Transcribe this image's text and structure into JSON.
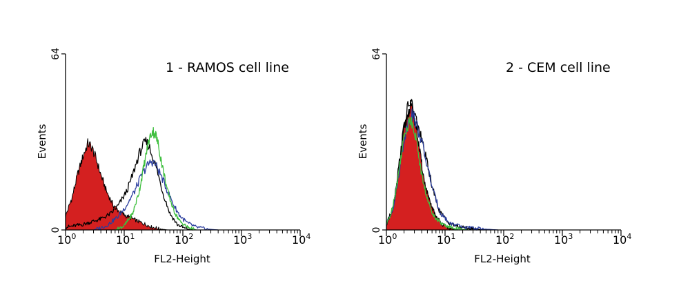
{
  "chart_data": [
    {
      "type": "histogram",
      "title": "1 - RAMOS cell line",
      "xlabel": "FL2-Height",
      "ylabel": "Events",
      "xscale": "log",
      "xlim": [
        1,
        10000
      ],
      "ylim": [
        0,
        64
      ],
      "y_ticks": [
        {
          "value": 0,
          "label": "0"
        },
        {
          "value": 64,
          "label": "64"
        }
      ],
      "x_ticks": [
        {
          "value": 1,
          "base": "10",
          "exp": "0"
        },
        {
          "value": 10,
          "base": "10",
          "exp": "1"
        },
        {
          "value": 100,
          "base": "10",
          "exp": "2"
        },
        {
          "value": 1000,
          "base": "10",
          "exp": "3"
        },
        {
          "value": 10000,
          "base": "10",
          "exp": "4"
        }
      ],
      "series": [
        {
          "name": "red filled",
          "color": "#d42020",
          "filled": true,
          "points": [
            [
              1.0,
              5
            ],
            [
              1.3,
              12
            ],
            [
              1.6,
              20
            ],
            [
              2.0,
              27
            ],
            [
              2.4,
              31.5
            ],
            [
              2.8,
              30
            ],
            [
              3.3,
              26
            ],
            [
              4.0,
              20
            ],
            [
              5.0,
              14
            ],
            [
              6.5,
              9
            ],
            [
              8.5,
              6.5
            ],
            [
              11,
              5
            ],
            [
              14,
              4
            ],
            [
              18,
              3
            ],
            [
              23,
              2
            ],
            [
              30,
              1
            ],
            [
              40,
              0.4
            ],
            [
              55,
              0
            ]
          ]
        },
        {
          "name": "black",
          "color": "#000000",
          "filled": false,
          "points": [
            [
              1.0,
              1
            ],
            [
              2.0,
              2
            ],
            [
              4.0,
              4
            ],
            [
              6.0,
              6
            ],
            [
              8.0,
              9
            ],
            [
              11,
              14
            ],
            [
              14,
              20
            ],
            [
              17,
              26
            ],
            [
              20,
              30
            ],
            [
              23,
              32
            ],
            [
              26,
              31
            ],
            [
              30,
              27
            ],
            [
              36,
              22
            ],
            [
              45,
              14
            ],
            [
              60,
              6
            ],
            [
              80,
              2
            ],
            [
              110,
              0.5
            ],
            [
              150,
              0
            ]
          ]
        },
        {
          "name": "blue",
          "color": "#2a3d9e",
          "filled": false,
          "points": [
            [
              3.0,
              0
            ],
            [
              5.0,
              1.5
            ],
            [
              8.0,
              5
            ],
            [
              11,
              9
            ],
            [
              15,
              14
            ],
            [
              19,
              19
            ],
            [
              24,
              23
            ],
            [
              29,
              25
            ],
            [
              34,
              24
            ],
            [
              42,
              20
            ],
            [
              55,
              14
            ],
            [
              70,
              9
            ],
            [
              90,
              5
            ],
            [
              120,
              2.5
            ],
            [
              170,
              1
            ],
            [
              260,
              0.3
            ],
            [
              400,
              0
            ]
          ]
        },
        {
          "name": "green",
          "color": "#3fbf3f",
          "filled": false,
          "points": [
            [
              7.0,
              0
            ],
            [
              10,
              1.5
            ],
            [
              14,
              6
            ],
            [
              18,
              14
            ],
            [
              22,
              24
            ],
            [
              26,
              32
            ],
            [
              30,
              36
            ],
            [
              34,
              35
            ],
            [
              38,
              31
            ],
            [
              45,
              23
            ],
            [
              55,
              14
            ],
            [
              70,
              7
            ],
            [
              90,
              3
            ],
            [
              120,
              1
            ],
            [
              170,
              0
            ]
          ]
        }
      ]
    },
    {
      "type": "histogram",
      "title": "2 - CEM cell line",
      "xlabel": "FL2-Height",
      "ylabel": "Events",
      "xscale": "log",
      "xlim": [
        1,
        10000
      ],
      "ylim": [
        0,
        64
      ],
      "y_ticks": [
        {
          "value": 0,
          "label": "0"
        },
        {
          "value": 64,
          "label": "64"
        }
      ],
      "x_ticks": [
        {
          "value": 1,
          "base": "10",
          "exp": "0"
        },
        {
          "value": 10,
          "base": "10",
          "exp": "1"
        },
        {
          "value": 100,
          "base": "10",
          "exp": "2"
        },
        {
          "value": 1000,
          "base": "10",
          "exp": "3"
        },
        {
          "value": 10000,
          "base": "10",
          "exp": "4"
        }
      ],
      "series": [
        {
          "name": "red filled",
          "color": "#d42020",
          "filled": true,
          "points": [
            [
              1.0,
              2
            ],
            [
              1.3,
              8
            ],
            [
              1.6,
              20
            ],
            [
              2.0,
              36
            ],
            [
              2.3,
              42
            ],
            [
              2.6,
              45
            ],
            [
              2.9,
              42
            ],
            [
              3.3,
              36
            ],
            [
              3.8,
              27
            ],
            [
              4.5,
              17
            ],
            [
              5.5,
              10
            ],
            [
              7.0,
              5
            ],
            [
              9.0,
              2
            ],
            [
              12,
              0.6
            ],
            [
              15,
              0
            ]
          ]
        },
        {
          "name": "black",
          "color": "#000000",
          "filled": false,
          "points": [
            [
              1.0,
              2
            ],
            [
              1.3,
              8
            ],
            [
              1.6,
              22
            ],
            [
              2.0,
              38
            ],
            [
              2.3,
              44
            ],
            [
              2.6,
              47
            ],
            [
              3.0,
              42
            ],
            [
              3.5,
              37
            ],
            [
              4.2,
              31
            ],
            [
              5.2,
              22
            ],
            [
              6.5,
              13
            ],
            [
              8.0,
              7
            ],
            [
              11,
              3
            ],
            [
              16,
              1.2
            ],
            [
              30,
              0.4
            ],
            [
              60,
              0
            ]
          ]
        },
        {
          "name": "blue",
          "color": "#2a3d9e",
          "filled": false,
          "points": [
            [
              1.0,
              2
            ],
            [
              1.3,
              8
            ],
            [
              1.6,
              19
            ],
            [
              2.0,
              33
            ],
            [
              2.4,
              40
            ],
            [
              2.8,
              42
            ],
            [
              3.3,
              38
            ],
            [
              4.0,
              32
            ],
            [
              5.0,
              23
            ],
            [
              6.5,
              13
            ],
            [
              8.5,
              6
            ],
            [
              12,
              2.5
            ],
            [
              20,
              1
            ],
            [
              40,
              0.4
            ],
            [
              80,
              0
            ]
          ]
        },
        {
          "name": "green",
          "color": "#3fbf3f",
          "filled": false,
          "points": [
            [
              1.0,
              2
            ],
            [
              1.2,
              6
            ],
            [
              1.5,
              16
            ],
            [
              1.8,
              28
            ],
            [
              2.1,
              36
            ],
            [
              2.5,
              40
            ],
            [
              2.9,
              38
            ],
            [
              3.4,
              30
            ],
            [
              4.0,
              20
            ],
            [
              5.0,
              11
            ],
            [
              6.5,
              5
            ],
            [
              9,
              2
            ],
            [
              15,
              0.5
            ],
            [
              25,
              0
            ]
          ]
        }
      ]
    }
  ]
}
